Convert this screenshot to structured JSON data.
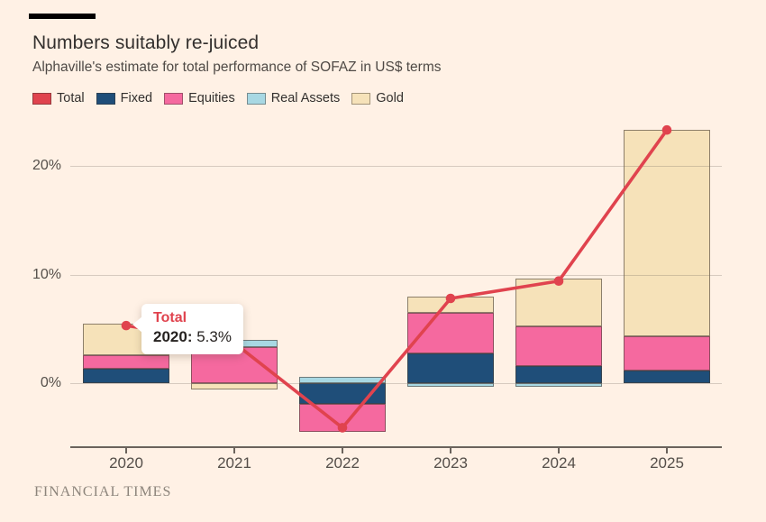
{
  "header": {
    "title": "Numbers suitably re-juiced",
    "subtitle": "Alphaville's estimate for total performance of SOFAZ in US$ terms"
  },
  "legend": {
    "items": [
      {
        "label": "Total",
        "color": "#e0434e"
      },
      {
        "label": "Fixed",
        "color": "#1f4e79"
      },
      {
        "label": "Equities",
        "color": "#f5699f"
      },
      {
        "label": "Real Assets",
        "color": "#a8d8e3"
      },
      {
        "label": "Gold",
        "color": "#f6e2b9"
      }
    ]
  },
  "tooltip": {
    "series": "Total",
    "label": "2020:",
    "value": "5.3%"
  },
  "footer": {
    "brand": "FINANCIAL TIMES"
  },
  "colors": {
    "background": "#fff1e5",
    "total_line": "#e0434e",
    "fixed": "#1f4e79",
    "equities": "#f5699f",
    "real_assets": "#a8d8e3",
    "gold": "#f6e2b9",
    "axis": "#6b635c",
    "bar_border": "rgba(72,61,53,0.6)"
  },
  "chart_data": {
    "type": "bar",
    "subtype": "stacked-bars-with-total-line",
    "title": "Numbers suitably re-juiced",
    "subtitle": "Alphaville's estimate for total performance of SOFAZ in US$ terms",
    "categories": [
      "2020",
      "2021",
      "2022",
      "2023",
      "2024",
      "2025"
    ],
    "series": [
      {
        "name": "Fixed",
        "color": "#1f4e79",
        "values": [
          1.3,
          0,
          -1.9,
          2.7,
          1.6,
          1.15
        ]
      },
      {
        "name": "Equities",
        "color": "#f5699f",
        "values": [
          1.25,
          3.3,
          -2.6,
          3.8,
          3.6,
          3.2
        ]
      },
      {
        "name": "Real Assets",
        "color": "#a8d8e3",
        "values": [
          0,
          0.7,
          0.55,
          -0.3,
          -0.3,
          0
        ]
      },
      {
        "name": "Gold",
        "color": "#f6e2b9",
        "values": [
          2.9,
          -0.55,
          0,
          1.5,
          4.4,
          19.0
        ]
      }
    ],
    "line_series": {
      "name": "Total",
      "color": "#e0434e",
      "values": [
        5.3,
        3.7,
        -4.1,
        7.8,
        9.4,
        23.3
      ]
    },
    "stack_order": [
      "Fixed",
      "Equities",
      "Real Assets",
      "Gold"
    ],
    "yticks": [
      {
        "value": 0,
        "label": "0%"
      },
      {
        "value": 10,
        "label": "10%"
      },
      {
        "value": 20,
        "label": "20%"
      }
    ],
    "ylim": [
      -5.8,
      24.5
    ],
    "grid": "horizontal",
    "xlabel": "",
    "ylabel": ""
  }
}
